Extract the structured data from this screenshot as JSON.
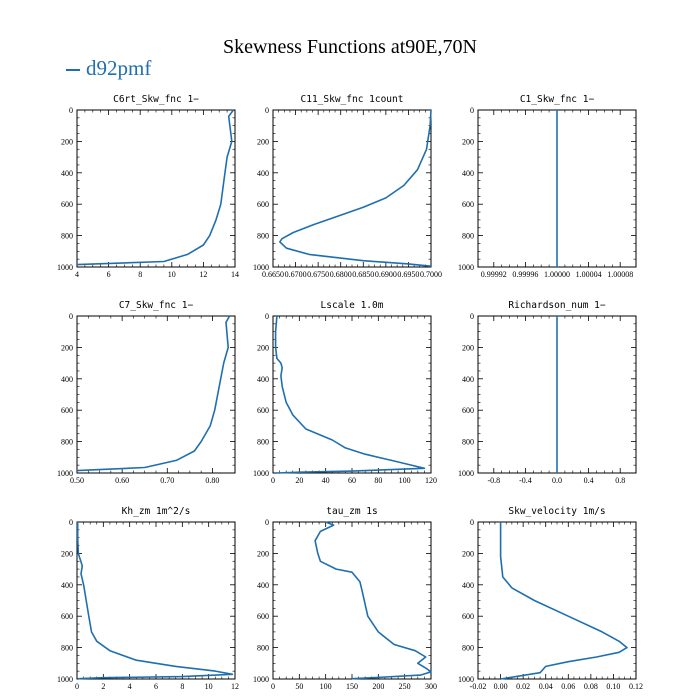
{
  "title": "Skewness Functions at90E,70N",
  "legend": [
    {
      "label": "d92pmf",
      "color": "#1f6fb0"
    }
  ],
  "line_color": "#1f6fb0",
  "chart_data": [
    {
      "type": "line",
      "title": "C6rt_Skw_fnc   1−",
      "xlim": [
        4,
        14
      ],
      "ylim": [
        1000,
        0
      ],
      "xticks": [
        4,
        6,
        8,
        10,
        12,
        14
      ],
      "xtick_labels": [
        "4",
        "6",
        "8",
        "10",
        "12",
        "14"
      ],
      "yticks": [
        0,
        200,
        400,
        600,
        800,
        1000
      ],
      "ytick_labels": [
        "0",
        "200",
        "400",
        "600",
        "800",
        "1000"
      ],
      "x": [
        13.9,
        13.6,
        13.8,
        13.5,
        13.3,
        13.1,
        12.8,
        12.4,
        12.0,
        11.0,
        9.5,
        4.0
      ],
      "y": [
        0,
        40,
        200,
        300,
        450,
        600,
        700,
        800,
        860,
        920,
        965,
        985
      ]
    },
    {
      "type": "line",
      "title": "C11_Skw_fnc   1count",
      "xlim": [
        0.665,
        0.7
      ],
      "ylim": [
        1000,
        0
      ],
      "xticks": [
        0.665,
        0.67,
        0.675,
        0.68,
        0.685,
        0.69,
        0.695,
        0.7
      ],
      "xtick_labels": [
        "0.6650",
        "0.6700",
        "0.6750",
        "0.6800",
        "0.6850",
        "0.6900",
        "0.6950",
        "0.7000"
      ],
      "yticks": [
        0,
        200,
        400,
        600,
        800,
        1000
      ],
      "ytick_labels": [
        "0",
        "200",
        "400",
        "600",
        "800",
        "1000"
      ],
      "x": [
        0.7,
        0.6998,
        0.699,
        0.697,
        0.694,
        0.69,
        0.685,
        0.679,
        0.674,
        0.6695,
        0.667,
        0.6665,
        0.668,
        0.673,
        0.685,
        0.695,
        0.7
      ],
      "y": [
        0,
        100,
        250,
        380,
        480,
        560,
        620,
        680,
        730,
        780,
        820,
        840,
        880,
        920,
        960,
        980,
        995
      ]
    },
    {
      "type": "line",
      "title": "C1_Skw_fnc   1−",
      "xlim": [
        0.9999,
        1.0001
      ],
      "ylim": [
        1000,
        0
      ],
      "xticks": [
        0.99992,
        0.99996,
        1.0,
        1.00004,
        1.00008
      ],
      "xtick_labels": [
        "0.99992",
        "0.99996",
        "1.00000",
        "1.00004",
        "1.00008"
      ],
      "yticks": [
        0,
        200,
        400,
        600,
        800,
        1000
      ],
      "ytick_labels": [
        "0",
        "200",
        "400",
        "600",
        "800",
        "1000"
      ],
      "x": [
        1.0,
        1.0
      ],
      "y": [
        0,
        1000
      ]
    },
    {
      "type": "line",
      "title": "C7_Skw_fnc   1−",
      "xlim": [
        0.5,
        0.85
      ],
      "ylim": [
        1000,
        0
      ],
      "xticks": [
        0.5,
        0.6,
        0.7,
        0.8
      ],
      "xtick_labels": [
        "0.50",
        "0.60",
        "0.70",
        "0.80"
      ],
      "yticks": [
        0,
        200,
        400,
        600,
        800,
        1000
      ],
      "ytick_labels": [
        "0",
        "200",
        "400",
        "600",
        "800",
        "1000"
      ],
      "x": [
        0.838,
        0.83,
        0.835,
        0.825,
        0.815,
        0.805,
        0.795,
        0.775,
        0.76,
        0.72,
        0.65,
        0.5
      ],
      "y": [
        0,
        40,
        200,
        300,
        450,
        600,
        700,
        800,
        860,
        920,
        965,
        985
      ]
    },
    {
      "type": "line",
      "title": "Lscale   1.0m",
      "xlim": [
        0,
        120
      ],
      "ylim": [
        1000,
        0
      ],
      "xticks": [
        0,
        20,
        40,
        60,
        80,
        100,
        120
      ],
      "xtick_labels": [
        "0",
        "20",
        "40",
        "60",
        "80",
        "100",
        "120"
      ],
      "yticks": [
        0,
        200,
        400,
        600,
        800,
        1000
      ],
      "ytick_labels": [
        "0",
        "200",
        "400",
        "600",
        "800",
        "1000"
      ],
      "x": [
        3,
        2,
        2,
        3,
        6,
        7,
        6,
        7,
        10,
        15,
        25,
        45,
        55,
        70,
        90,
        105,
        115,
        60,
        20,
        3
      ],
      "y": [
        0,
        100,
        200,
        270,
        300,
        330,
        380,
        450,
        550,
        630,
        720,
        790,
        840,
        880,
        920,
        950,
        970,
        988,
        995,
        1000
      ]
    },
    {
      "type": "line",
      "title": "Richardson_num   1−",
      "xlim": [
        -1,
        1
      ],
      "ylim": [
        1000,
        0
      ],
      "xticks": [
        -0.8,
        -0.4,
        0.0,
        0.4,
        0.8
      ],
      "xtick_labels": [
        "-0.8",
        "-0.4",
        "0.0",
        "0.4",
        "0.8"
      ],
      "yticks": [
        0,
        200,
        400,
        600,
        800,
        1000
      ],
      "ytick_labels": [
        "0",
        "200",
        "400",
        "600",
        "800",
        "1000"
      ],
      "x": [
        0,
        0
      ],
      "y": [
        0,
        1000
      ]
    },
    {
      "type": "line",
      "title": "Kh_zm   1m^2/s",
      "xlim": [
        0,
        12
      ],
      "ylim": [
        1000,
        0
      ],
      "xticks": [
        0,
        2,
        4,
        6,
        8,
        10,
        12
      ],
      "xtick_labels": [
        "0",
        "2",
        "4",
        "6",
        "8",
        "10",
        "12"
      ],
      "yticks": [
        0,
        200,
        400,
        600,
        800,
        1000
      ],
      "ytick_labels": [
        "0",
        "200",
        "400",
        "600",
        "800",
        "1000"
      ],
      "x": [
        0.05,
        0.05,
        0.1,
        0.4,
        0.3,
        0.5,
        0.7,
        0.9,
        1.1,
        1.5,
        2.5,
        4.5,
        7.5,
        10.5,
        11.8,
        8.0,
        2.0,
        0.1
      ],
      "y": [
        0,
        100,
        200,
        280,
        330,
        400,
        500,
        600,
        700,
        760,
        820,
        880,
        920,
        950,
        970,
        985,
        992,
        998
      ]
    },
    {
      "type": "line",
      "title": "tau_zm   1s",
      "xlim": [
        0,
        300
      ],
      "ylim": [
        1000,
        0
      ],
      "xticks": [
        0,
        50,
        100,
        150,
        200,
        250,
        300
      ],
      "xtick_labels": [
        "0",
        "50",
        "100",
        "150",
        "200",
        "250",
        "300"
      ],
      "yticks": [
        0,
        200,
        400,
        600,
        800,
        1000
      ],
      "ytick_labels": [
        "0",
        "200",
        "400",
        "600",
        "800",
        "1000"
      ],
      "x": [
        100,
        115,
        90,
        80,
        85,
        90,
        120,
        150,
        165,
        170,
        180,
        200,
        230,
        270,
        290,
        275,
        290,
        300,
        280,
        200,
        150
      ],
      "y": [
        0,
        20,
        60,
        120,
        200,
        250,
        300,
        320,
        380,
        450,
        600,
        700,
        780,
        820,
        860,
        900,
        930,
        955,
        975,
        990,
        998
      ]
    },
    {
      "type": "line",
      "title": "Skw_velocity   1m/s",
      "xlim": [
        -0.02,
        0.12
      ],
      "ylim": [
        1000,
        0
      ],
      "xticks": [
        -0.02,
        0.0,
        0.02,
        0.04,
        0.06,
        0.08,
        0.1,
        0.12
      ],
      "xtick_labels": [
        "-0.02",
        "0.00",
        "0.02",
        "0.04",
        "0.06",
        "0.08",
        "0.10",
        "0.12"
      ],
      "yticks": [
        0,
        200,
        400,
        600,
        800,
        1000
      ],
      "ytick_labels": [
        "0",
        "200",
        "400",
        "600",
        "800",
        "1000"
      ],
      "x": [
        0.0,
        0.0,
        0.0,
        0.002,
        0.01,
        0.03,
        0.06,
        0.09,
        0.105,
        0.112,
        0.105,
        0.085,
        0.06,
        0.04,
        0.035,
        0.0
      ],
      "y": [
        0,
        100,
        220,
        350,
        420,
        500,
        600,
        700,
        760,
        800,
        830,
        860,
        890,
        920,
        960,
        1000
      ]
    }
  ]
}
